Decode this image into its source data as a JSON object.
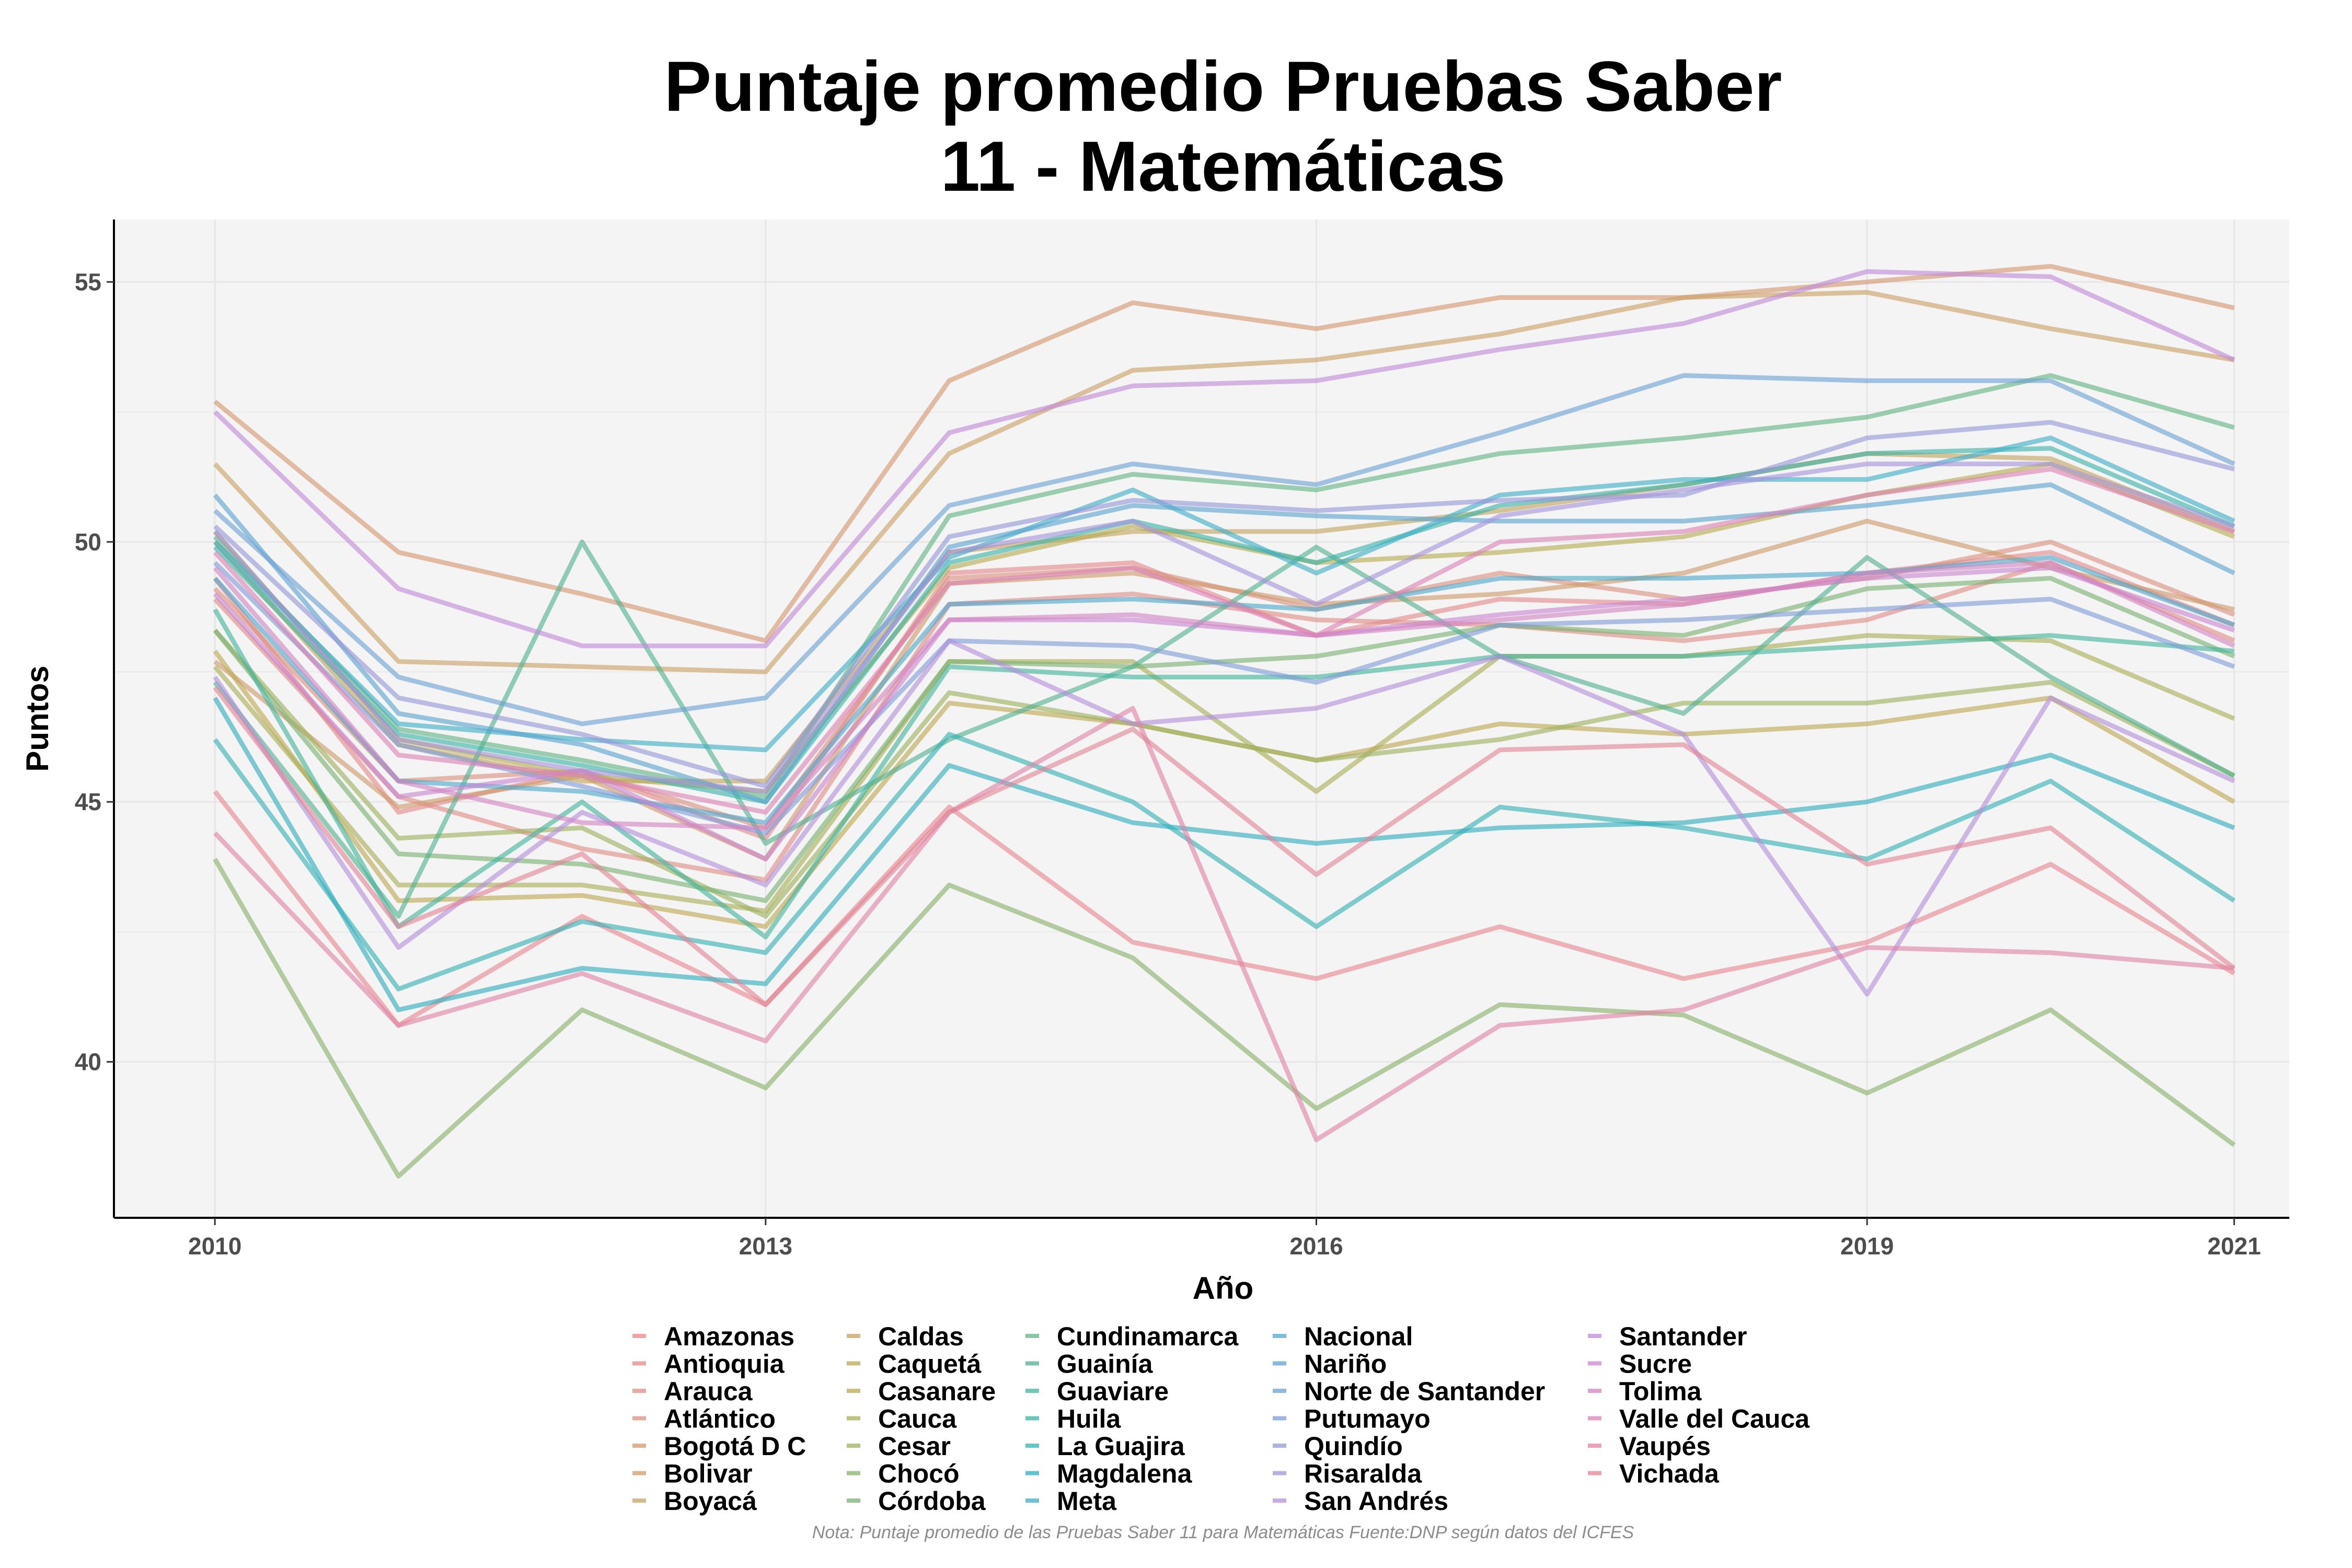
{
  "chart_data": {
    "type": "line",
    "title_lines": [
      "Puntaje promedio Pruebas Saber",
      "11 - Matemáticas"
    ],
    "xlabel": "Año",
    "ylabel": "Puntos",
    "x": [
      2010,
      2011,
      2012,
      2013,
      2014,
      2015,
      2016,
      2017,
      2018,
      2019,
      2020,
      2021
    ],
    "x_ticks": [
      2010,
      2013,
      2016,
      2019,
      2021
    ],
    "y_ticks": [
      40,
      45,
      50,
      55
    ],
    "xlim": [
      2009.45,
      2021.3
    ],
    "ylim": [
      37,
      56.2
    ],
    "grid": true,
    "legend_position": "bottom",
    "note": "Nota: Puntaje promedio de las Pruebas Saber 11 para Matemáticas Fuente:DNP según datos del ICFES",
    "series": [
      {
        "name": "Amazonas",
        "color": "#e8868f",
        "values": [
          45.2,
          40.7,
          42.8,
          41.1,
          44.9,
          42.3,
          41.6,
          42.6,
          41.6,
          42.3,
          43.8,
          41.7
        ]
      },
      {
        "name": "Antioquia",
        "color": "#e4898a",
        "values": [
          49.3,
          44.8,
          45.6,
          44.3,
          49.4,
          49.6,
          48.2,
          48.9,
          48.8,
          49.4,
          49.8,
          48.4
        ]
      },
      {
        "name": "Arauca",
        "color": "#e08d86",
        "values": [
          48.9,
          45.1,
          44.1,
          43.5,
          48.8,
          49.0,
          48.5,
          48.4,
          48.1,
          48.5,
          49.6,
          48.1
        ]
      },
      {
        "name": "Atlántico",
        "color": "#dc9080",
        "values": [
          49.1,
          45.4,
          45.6,
          44.5,
          49.3,
          49.5,
          48.7,
          49.4,
          48.9,
          49.3,
          50.0,
          48.6
        ]
      },
      {
        "name": "Bogotá D C",
        "color": "#d5966f",
        "values": [
          52.7,
          49.8,
          49.0,
          48.1,
          53.1,
          54.6,
          54.1,
          54.7,
          54.7,
          55.0,
          55.3,
          54.5
        ]
      },
      {
        "name": "Bolivar",
        "color": "#cf9b6b",
        "values": [
          47.7,
          44.9,
          45.5,
          43.9,
          49.2,
          49.4,
          48.8,
          49.0,
          49.4,
          50.4,
          49.5,
          48.7
        ]
      },
      {
        "name": "Boyacá",
        "color": "#c9a064",
        "values": [
          51.5,
          47.7,
          47.6,
          47.5,
          51.7,
          53.3,
          53.5,
          54.0,
          54.7,
          54.8,
          54.1,
          53.5
        ]
      },
      {
        "name": "Caldas",
        "color": "#c4a35d",
        "values": [
          50.0,
          46.1,
          45.4,
          45.4,
          49.8,
          50.2,
          50.2,
          50.6,
          51.1,
          51.7,
          51.6,
          50.2
        ]
      },
      {
        "name": "Caquetá",
        "color": "#bda853",
        "values": [
          47.9,
          43.1,
          43.2,
          42.6,
          46.9,
          46.5,
          45.8,
          46.5,
          46.3,
          46.5,
          47.0,
          45.0
        ]
      },
      {
        "name": "Casanare",
        "color": "#b6ab4f",
        "values": [
          50.2,
          46.2,
          45.5,
          45.2,
          49.5,
          50.3,
          49.6,
          49.8,
          50.1,
          50.9,
          51.5,
          50.1
        ]
      },
      {
        "name": "Cauca",
        "color": "#aaaf55",
        "values": [
          47.6,
          43.4,
          43.4,
          42.9,
          47.7,
          47.7,
          45.2,
          47.8,
          47.8,
          48.2,
          48.1,
          46.6
        ]
      },
      {
        "name": "Cesar",
        "color": "#9db15e",
        "values": [
          48.3,
          44.3,
          44.5,
          42.8,
          47.1,
          46.5,
          45.8,
          46.2,
          46.9,
          46.9,
          47.3,
          45.5
        ]
      },
      {
        "name": "Chocó",
        "color": "#88b16a",
        "values": [
          43.9,
          37.8,
          41.0,
          39.5,
          43.4,
          42.0,
          39.1,
          41.1,
          40.9,
          39.4,
          41.0,
          38.4
        ]
      },
      {
        "name": "Córdoba",
        "color": "#7ab273",
        "values": [
          48.3,
          44.0,
          43.8,
          43.1,
          47.7,
          47.6,
          47.8,
          48.4,
          48.2,
          49.1,
          49.3,
          47.8
        ]
      },
      {
        "name": "Cundinamarca",
        "color": "#62b585",
        "values": [
          50.1,
          46.4,
          45.8,
          45.1,
          50.5,
          51.3,
          51.0,
          51.7,
          52.0,
          52.4,
          53.2,
          52.2
        ]
      },
      {
        "name": "Guainía",
        "color": "#50b28f",
        "values": [
          47.3,
          42.8,
          50.0,
          44.2,
          46.2,
          47.6,
          49.9,
          47.8,
          46.7,
          49.7,
          47.4,
          45.5
        ]
      },
      {
        "name": "Guaviare",
        "color": "#42b59c",
        "values": [
          48.7,
          42.6,
          45.0,
          42.4,
          47.6,
          47.4,
          47.4,
          47.8,
          47.8,
          48.0,
          48.2,
          47.9
        ]
      },
      {
        "name": "Huila",
        "color": "#3ab3a8",
        "values": [
          49.9,
          46.3,
          45.7,
          45.0,
          49.6,
          50.4,
          49.6,
          50.7,
          51.1,
          51.7,
          51.8,
          50.3
        ]
      },
      {
        "name": "La Guajira",
        "color": "#33b2b4",
        "values": [
          46.2,
          41.4,
          42.7,
          42.1,
          46.3,
          45.0,
          42.6,
          44.9,
          44.5,
          43.9,
          45.4,
          43.1
        ]
      },
      {
        "name": "Magdalena",
        "color": "#2eafbd",
        "values": [
          47.0,
          41.0,
          41.8,
          41.5,
          45.7,
          44.6,
          44.2,
          44.5,
          44.6,
          45.0,
          45.9,
          44.5
        ]
      },
      {
        "name": "Meta",
        "color": "#3eaec6",
        "values": [
          50.0,
          46.5,
          46.2,
          46.0,
          49.7,
          51.0,
          49.4,
          50.9,
          51.2,
          51.2,
          52.0,
          50.4
        ]
      },
      {
        "name": "Nacional",
        "color": "#4ea8cc",
        "values": [
          49.3,
          45.4,
          45.2,
          44.6,
          48.8,
          48.9,
          48.7,
          49.3,
          49.3,
          49.4,
          49.7,
          48.4
        ]
      },
      {
        "name": "Nariño",
        "color": "#5ba4d0",
        "values": [
          50.9,
          46.7,
          46.1,
          45.0,
          49.9,
          50.7,
          50.5,
          50.4,
          50.4,
          50.7,
          51.1,
          49.4
        ]
      },
      {
        "name": "Norte de Santander",
        "color": "#6ca2d3",
        "values": [
          50.6,
          47.4,
          46.5,
          47.0,
          50.7,
          51.5,
          51.1,
          52.1,
          53.2,
          53.1,
          53.1,
          51.5
        ]
      },
      {
        "name": "Putumayo",
        "color": "#7f9dd6",
        "values": [
          49.6,
          46.1,
          45.3,
          44.4,
          48.1,
          48.0,
          47.3,
          48.4,
          48.5,
          48.7,
          48.9,
          47.6
        ]
      },
      {
        "name": "Quindío",
        "color": "#9698d8",
        "values": [
          50.3,
          47.0,
          46.3,
          45.3,
          50.1,
          50.8,
          50.6,
          50.8,
          50.9,
          52.0,
          52.3,
          51.4
        ]
      },
      {
        "name": "Risaralda",
        "color": "#a694da",
        "values": [
          50.2,
          46.2,
          45.6,
          45.2,
          49.8,
          50.4,
          48.8,
          50.5,
          51.0,
          51.5,
          51.5,
          50.3
        ]
      },
      {
        "name": "San Andrés",
        "color": "#b290da",
        "values": [
          47.4,
          42.2,
          44.8,
          43.4,
          48.1,
          46.5,
          46.8,
          47.8,
          46.3,
          41.3,
          47.0,
          45.4
        ]
      },
      {
        "name": "Santander",
        "color": "#c08ad8",
        "values": [
          52.5,
          49.1,
          48.0,
          48.0,
          52.1,
          53.0,
          53.1,
          53.7,
          54.2,
          55.2,
          55.1,
          53.5
        ]
      },
      {
        "name": "Sucre",
        "color": "#ca86d0",
        "values": [
          49.0,
          45.1,
          45.6,
          43.9,
          48.5,
          48.5,
          48.2,
          48.6,
          48.9,
          49.3,
          49.5,
          48.3
        ]
      },
      {
        "name": "Tolima",
        "color": "#d384c3",
        "values": [
          49.5,
          45.4,
          44.6,
          44.5,
          48.5,
          48.6,
          48.2,
          48.5,
          48.8,
          49.4,
          49.6,
          48.0
        ]
      },
      {
        "name": "Valle del Cauca",
        "color": "#dc82b4",
        "values": [
          49.8,
          45.9,
          45.5,
          44.8,
          49.2,
          49.5,
          48.2,
          50.0,
          50.2,
          50.9,
          51.4,
          50.2
        ]
      },
      {
        "name": "Vaupés",
        "color": "#e083a4",
        "values": [
          44.4,
          40.7,
          41.7,
          40.4,
          44.8,
          46.8,
          38.5,
          40.7,
          41.0,
          42.2,
          42.1,
          41.8
        ]
      },
      {
        "name": "Vichada",
        "color": "#e28596",
        "values": [
          47.2,
          42.6,
          44.0,
          41.1,
          44.8,
          46.4,
          43.6,
          46.0,
          46.1,
          43.8,
          44.5,
          41.8
        ]
      }
    ]
  }
}
